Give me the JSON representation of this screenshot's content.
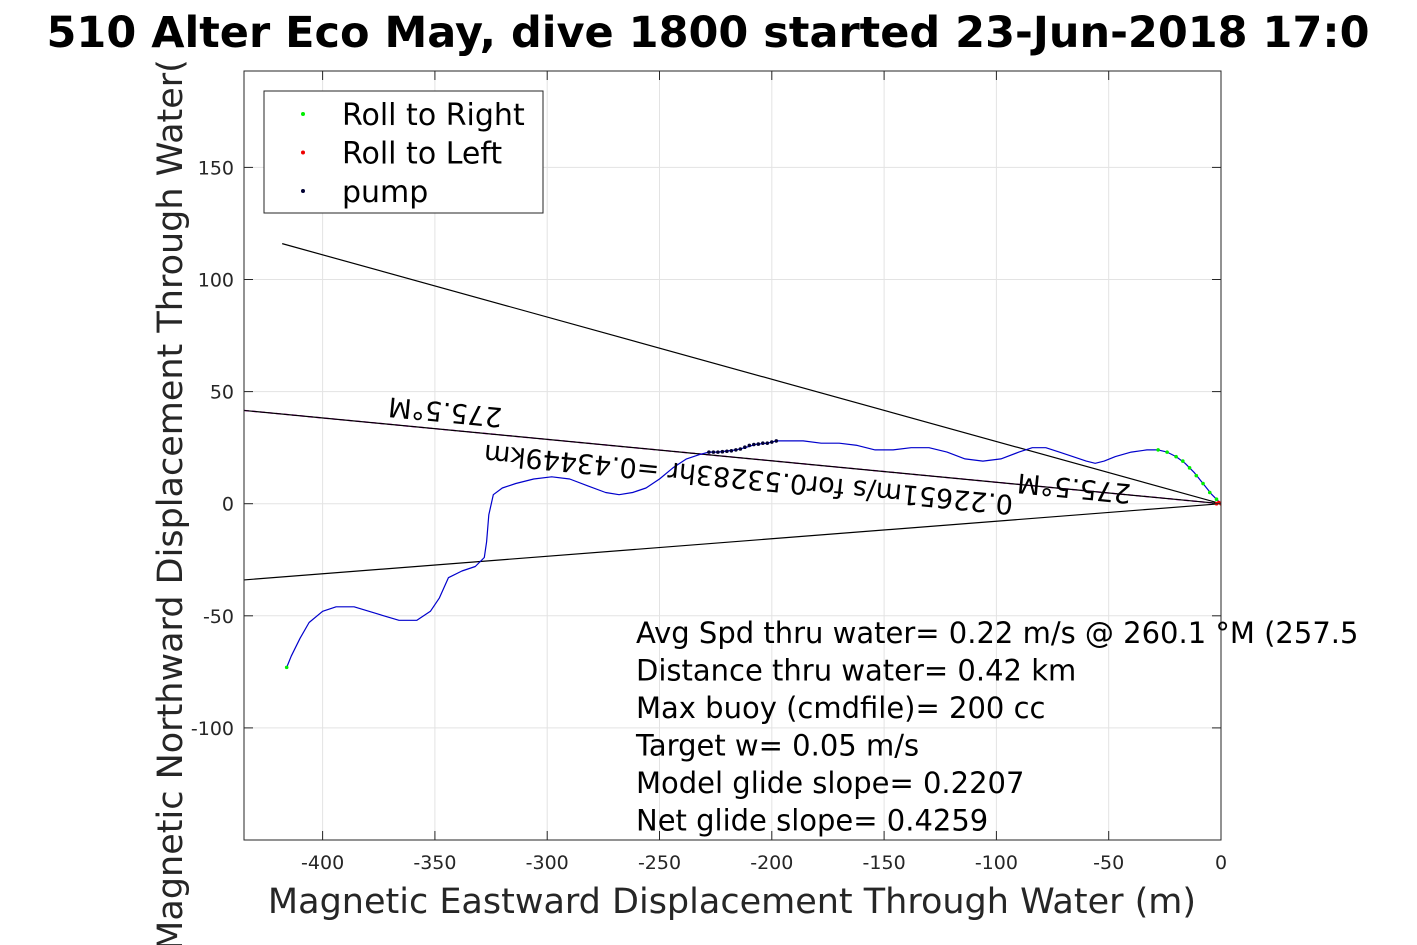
{
  "chart_data": {
    "type": "line",
    "title": "510 Alter Eco May, dive 1800 started 23-Jun-2018 17:0",
    "xlabel": "Magnetic Eastward Displacement Through Water (m)",
    "ylabel": "Magnetic Northward Displacement Through Water(",
    "xlim": [
      -435,
      0
    ],
    "ylim": [
      -150,
      193
    ],
    "grid": true,
    "x_ticks": [
      -400,
      -350,
      -300,
      -250,
      -200,
      -150,
      -100,
      -50,
      0
    ],
    "y_ticks": [
      -100,
      -50,
      0,
      50,
      100,
      150
    ],
    "legend": {
      "placement": "top-left",
      "entries": [
        {
          "label": "Roll to Right",
          "color": "#00ee00"
        },
        {
          "label": "Roll to Left",
          "color": "#ee0000"
        },
        {
          "label": "pump",
          "color": "#000033"
        }
      ]
    },
    "track": {
      "color": "#0000cc",
      "points": [
        [
          0,
          0
        ],
        [
          -4,
          4
        ],
        [
          -8,
          9
        ],
        [
          -12,
          14
        ],
        [
          -16,
          18
        ],
        [
          -20,
          21
        ],
        [
          -24,
          23
        ],
        [
          -28,
          24
        ],
        [
          -33,
          24
        ],
        [
          -40,
          23
        ],
        [
          -47,
          21
        ],
        [
          -52,
          19
        ],
        [
          -56,
          18
        ],
        [
          -60,
          19
        ],
        [
          -66,
          21
        ],
        [
          -72,
          23
        ],
        [
          -78,
          25
        ],
        [
          -84,
          25
        ],
        [
          -90,
          23
        ],
        [
          -98,
          20
        ],
        [
          -106,
          19
        ],
        [
          -114,
          20
        ],
        [
          -122,
          23
        ],
        [
          -130,
          25
        ],
        [
          -138,
          25
        ],
        [
          -146,
          24
        ],
        [
          -154,
          24
        ],
        [
          -162,
          26
        ],
        [
          -170,
          27
        ],
        [
          -178,
          27
        ],
        [
          -186,
          28
        ],
        [
          -194,
          28
        ],
        [
          -198,
          28
        ],
        [
          -202,
          27
        ],
        [
          -207,
          26.5
        ],
        [
          -212,
          25
        ],
        [
          -216,
          24
        ],
        [
          -220,
          23.5
        ],
        [
          -224,
          23
        ],
        [
          -228,
          23
        ],
        [
          -232,
          22
        ],
        [
          -238,
          20
        ],
        [
          -244,
          16
        ],
        [
          -250,
          11
        ],
        [
          -256,
          7
        ],
        [
          -262,
          5
        ],
        [
          -268,
          4
        ],
        [
          -274,
          5
        ],
        [
          -282,
          8
        ],
        [
          -290,
          11
        ],
        [
          -298,
          12
        ],
        [
          -306,
          11
        ],
        [
          -314,
          9
        ],
        [
          -320,
          7
        ],
        [
          -324,
          4
        ],
        [
          -326,
          -5
        ],
        [
          -327,
          -17
        ],
        [
          -328,
          -24
        ],
        [
          -332,
          -28
        ],
        [
          -338,
          -30
        ],
        [
          -344,
          -33
        ],
        [
          -348,
          -42
        ],
        [
          -352,
          -48
        ],
        [
          -358,
          -52
        ],
        [
          -366,
          -52
        ],
        [
          -376,
          -49
        ],
        [
          -386,
          -46
        ],
        [
          -394,
          -46
        ],
        [
          -400,
          -48
        ],
        [
          -406,
          -53
        ],
        [
          -410,
          -60
        ],
        [
          -414,
          -68
        ],
        [
          -416,
          -73
        ]
      ]
    },
    "marker_series": [
      {
        "name": "Roll to Right",
        "color": "#00ee00",
        "points": [
          [
            -2,
            2
          ],
          [
            -5,
            5
          ],
          [
            -8,
            9
          ],
          [
            -11,
            12.5
          ],
          [
            -14,
            16
          ],
          [
            -17,
            19
          ],
          [
            -20,
            21
          ],
          [
            -24,
            23
          ],
          [
            -28,
            24
          ],
          [
            -416,
            -73
          ]
        ]
      },
      {
        "name": "Roll to Left",
        "color": "#ee0000",
        "points": [
          [
            0,
            0
          ],
          [
            -1,
            0.5
          ],
          [
            -2,
            0
          ]
        ]
      },
      {
        "name": "pump",
        "color": "#000033",
        "points": [
          [
            -198,
            28
          ],
          [
            -200,
            27.5
          ],
          [
            -202,
            27
          ],
          [
            -204,
            27
          ],
          [
            -206,
            26.6
          ],
          [
            -208,
            26.4
          ],
          [
            -210,
            26
          ],
          [
            -212,
            25.2
          ],
          [
            -214,
            24.4
          ],
          [
            -216,
            24
          ],
          [
            -218,
            23.6
          ],
          [
            -220,
            23.4
          ],
          [
            -222,
            23.2
          ],
          [
            -224,
            23
          ],
          [
            -226,
            23
          ],
          [
            -228,
            23
          ]
        ]
      }
    ],
    "lines": [
      {
        "name": "upper-bound",
        "color": "#000000",
        "x": [
          -418,
          0
        ],
        "y": [
          116,
          0
        ]
      },
      {
        "name": "lower-bound",
        "color": "#000000",
        "x": [
          -435,
          0
        ],
        "y": [
          -34,
          0
        ]
      },
      {
        "name": "heading-line",
        "color": "#cc00cc",
        "dashed": true,
        "x": [
          -435,
          0
        ],
        "y": [
          41.6,
          0
        ]
      },
      {
        "name": "heading-line-base",
        "color": "#000000",
        "x": [
          -435,
          0
        ],
        "y": [
          41.6,
          0
        ]
      }
    ],
    "rotated_labels": [
      {
        "text": "275.5°M",
        "x": -345,
        "y": 45,
        "angle": 185.5
      },
      {
        "text": "0.22651m/s for0.53283hr =0.43449km",
        "x": -210,
        "y": 15,
        "angle": 185.5
      },
      {
        "text": "275.5°M",
        "x": -65,
        "y": 11,
        "angle": 185.5
      }
    ],
    "annotations": [
      "Avg Spd thru water=  0.22 m/s @ 260.1 °M (257.5",
      "Distance thru water=  0.42 km",
      "Max buoy (cmdfile)= 200 cc",
      "Target w= 0.05 m/s",
      "Model glide slope= 0.2207",
      "Net glide slope= 0.4259"
    ]
  }
}
